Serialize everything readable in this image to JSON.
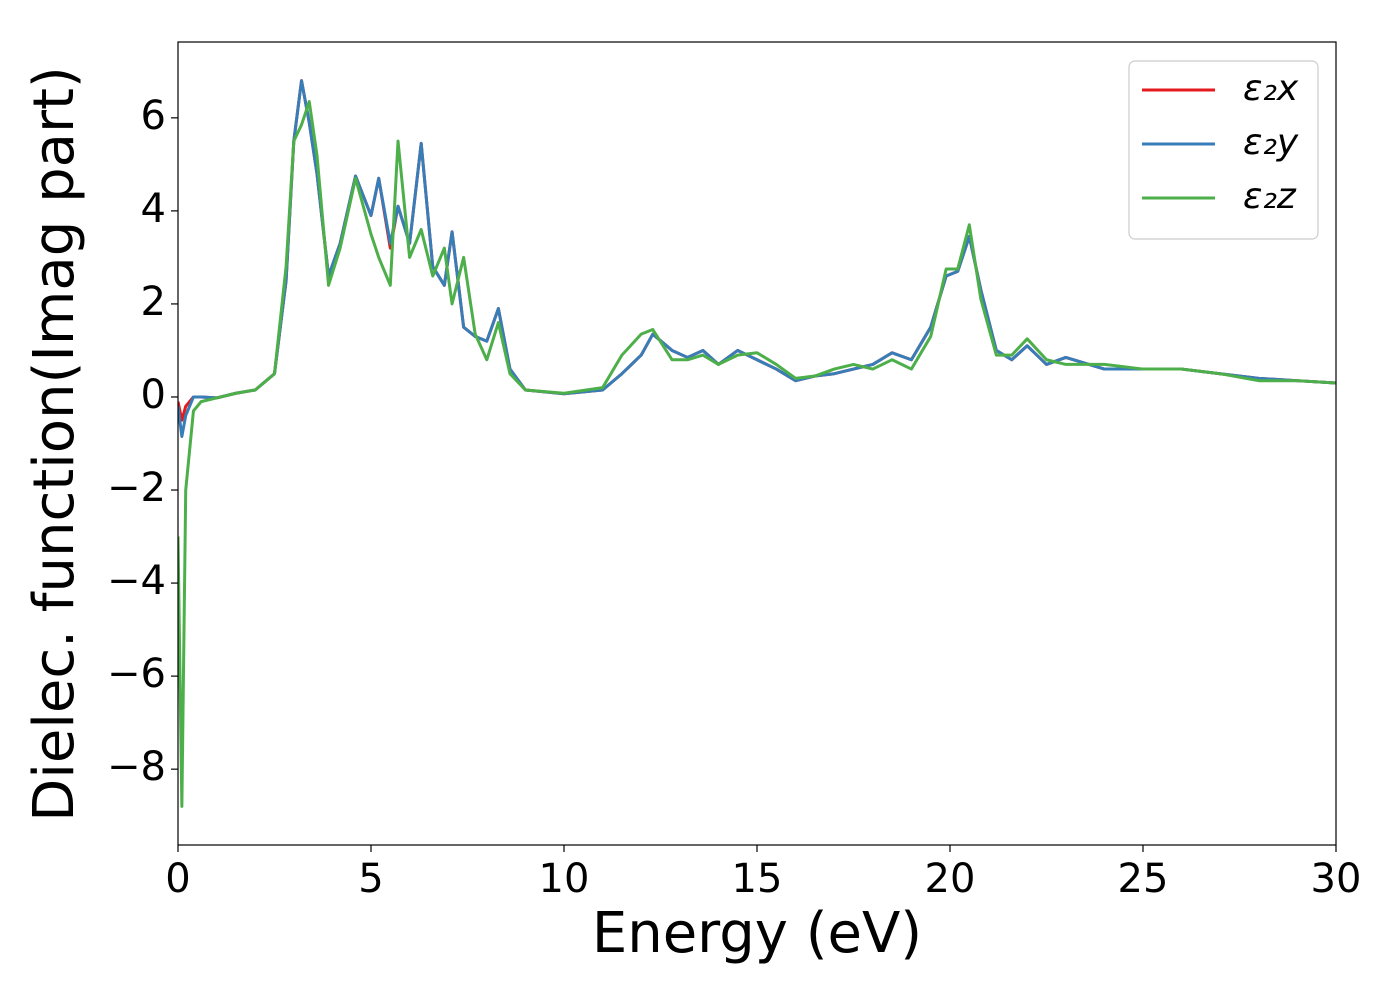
{
  "chart_data": {
    "type": "line",
    "xlabel": "Energy (eV)",
    "ylabel": "Dielec. function(Imag part)",
    "x": [
      0,
      0.1,
      0.2,
      0.4,
      0.6,
      1,
      1.5,
      2,
      2.5,
      2.8,
      3.0,
      3.2,
      3.4,
      3.6,
      3.9,
      4.2,
      4.6,
      5.0,
      5.2,
      5.5,
      5.7,
      6.0,
      6.3,
      6.6,
      6.9,
      7.1,
      7.4,
      7.7,
      8.0,
      8.3,
      8.6,
      9,
      10,
      11,
      11.5,
      12,
      12.3,
      12.8,
      13.2,
      13.6,
      14,
      14.5,
      15,
      15.5,
      16,
      16.5,
      17,
      17.5,
      18,
      18.5,
      19,
      19.5,
      19.9,
      20.2,
      20.5,
      20.8,
      21.2,
      21.6,
      22,
      22.5,
      23,
      24,
      25,
      26,
      27,
      28,
      29,
      30
    ],
    "series": [
      {
        "name": "ε₂x",
        "color": "#e41a1c",
        "values": [
          -0.1,
          -0.5,
          -0.2,
          0,
          0,
          -0.02,
          0.08,
          0.15,
          0.5,
          2.5,
          5.5,
          6.8,
          5.9,
          4.8,
          2.6,
          3.3,
          4.75,
          3.9,
          4.7,
          3.2,
          4.1,
          3.3,
          5.45,
          2.8,
          2.4,
          3.55,
          1.5,
          1.3,
          1.2,
          1.9,
          0.6,
          0.15,
          0.07,
          0.15,
          0.5,
          0.9,
          1.35,
          1.0,
          0.85,
          1.0,
          0.7,
          1.0,
          0.8,
          0.6,
          0.35,
          0.45,
          0.5,
          0.6,
          0.7,
          0.95,
          0.8,
          1.5,
          2.6,
          2.7,
          3.45,
          2.3,
          1.0,
          0.8,
          1.1,
          0.7,
          0.85,
          0.6,
          0.6,
          0.6,
          0.5,
          0.4,
          0.35,
          0.3
        ]
      },
      {
        "name": "ε₂y",
        "color": "#377eb8",
        "values": [
          -0.2,
          -0.85,
          -0.4,
          0,
          0,
          -0.02,
          0.08,
          0.15,
          0.5,
          2.5,
          5.5,
          6.8,
          5.9,
          4.8,
          2.6,
          3.3,
          4.75,
          3.9,
          4.7,
          3.3,
          4.1,
          3.3,
          5.45,
          2.8,
          2.4,
          3.55,
          1.5,
          1.3,
          1.2,
          1.9,
          0.6,
          0.15,
          0.07,
          0.15,
          0.5,
          0.9,
          1.35,
          1.0,
          0.85,
          1.0,
          0.7,
          1.0,
          0.8,
          0.6,
          0.35,
          0.45,
          0.5,
          0.6,
          0.7,
          0.95,
          0.8,
          1.5,
          2.6,
          2.7,
          3.45,
          2.3,
          1.0,
          0.8,
          1.1,
          0.7,
          0.85,
          0.6,
          0.6,
          0.6,
          0.5,
          0.4,
          0.35,
          0.3
        ]
      },
      {
        "name": "ε₂z",
        "color": "#4daf4a",
        "values": [
          -3,
          -8.8,
          -2,
          -0.3,
          -0.1,
          -0.02,
          0.08,
          0.15,
          0.5,
          2.8,
          5.5,
          5.85,
          6.35,
          5.2,
          2.4,
          3.2,
          4.7,
          3.5,
          3.0,
          2.4,
          5.5,
          3.0,
          3.6,
          2.6,
          3.2,
          2.0,
          3.0,
          1.35,
          0.8,
          1.6,
          0.5,
          0.15,
          0.08,
          0.2,
          0.9,
          1.35,
          1.45,
          0.8,
          0.8,
          0.9,
          0.7,
          0.9,
          0.95,
          0.7,
          0.4,
          0.45,
          0.6,
          0.7,
          0.6,
          0.8,
          0.6,
          1.3,
          2.75,
          2.75,
          3.7,
          2.1,
          0.9,
          0.9,
          1.25,
          0.8,
          0.7,
          0.7,
          0.6,
          0.6,
          0.5,
          0.35,
          0.35,
          0.3
        ]
      }
    ],
    "xlim": [
      0,
      30
    ],
    "ylim": [
      -9.63,
      7.63
    ],
    "xticks": [
      0,
      5,
      10,
      15,
      20,
      25,
      30
    ],
    "yticks": [
      {
        "value": -8,
        "label": "−8"
      },
      {
        "value": -6,
        "label": "−6"
      },
      {
        "value": -4,
        "label": "−4"
      },
      {
        "value": -2,
        "label": "−2"
      },
      0,
      2,
      4,
      6
    ],
    "legend": "upper right"
  }
}
